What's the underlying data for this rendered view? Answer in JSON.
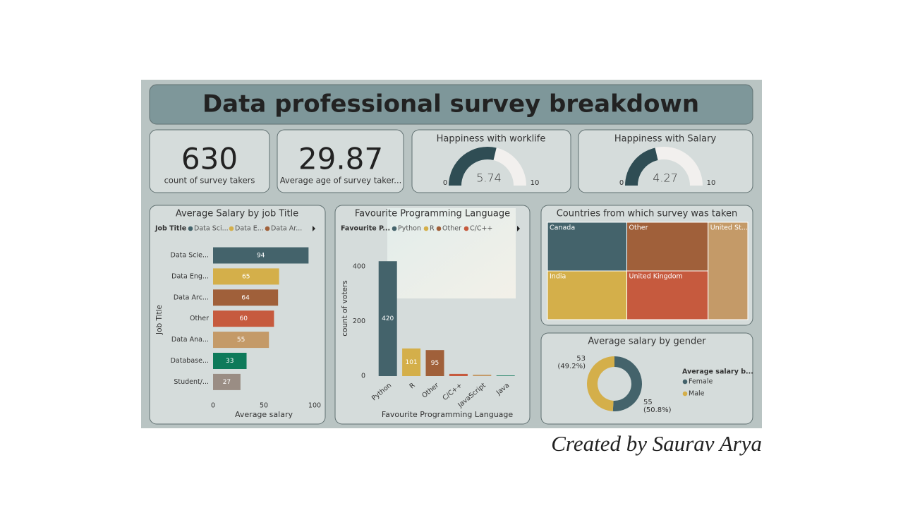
{
  "title": "Data professional survey breakdown",
  "cards": [
    {
      "value": 630,
      "label": "count of survey takers"
    },
    {
      "value": 29.87,
      "label": "Average age of survey taker..."
    }
  ],
  "chart_data": [
    {
      "type": "gauge",
      "title": "Happiness with worklife",
      "value": 5.74,
      "ylim": [
        0,
        10
      ],
      "color": "#2f4d54"
    },
    {
      "type": "gauge",
      "title": "Happiness with Salary",
      "value": 4.27,
      "ylim": [
        0,
        10
      ],
      "color": "#2f4d54"
    },
    {
      "type": "hbar",
      "title": "Average Salary by job Title",
      "legend_title": "Job Title",
      "legend": [
        {
          "name": "Data Sci...",
          "color": "#44636b"
        },
        {
          "name": "Data E...",
          "color": "#d4af4a"
        },
        {
          "name": "Data Ar...",
          "color": "#a0603a"
        }
      ],
      "categories": [
        "Data Scie...",
        "Data Eng...",
        "Data Arc...",
        "Other",
        "Data Ana...",
        "Database...",
        "Student/..."
      ],
      "values": [
        94,
        65,
        64,
        60,
        55,
        33,
        27
      ],
      "colors": [
        "#44636b",
        "#d4af4a",
        "#a0603a",
        "#c65a3e",
        "#c49a68",
        "#0e7a5a",
        "#9a8d84"
      ],
      "xlim": [
        0,
        100
      ],
      "xticks": [
        0,
        50,
        100
      ],
      "x_label": "Average salary",
      "y_label": "Job Title"
    },
    {
      "type": "column",
      "title": "Favourite Programming Language",
      "legend_title": "Favourite P...",
      "legend": [
        {
          "name": "Python",
          "color": "#44636b"
        },
        {
          "name": "R",
          "color": "#d4af4a"
        },
        {
          "name": "Other",
          "color": "#a0603a"
        },
        {
          "name": "C/C++",
          "color": "#c65a3e"
        }
      ],
      "categories": [
        "Python",
        "R",
        "Other",
        "C/C++",
        "JavaScript",
        "Java"
      ],
      "values": [
        420,
        101,
        95,
        8,
        5,
        2
      ],
      "value_labels": [
        "420",
        "101",
        "95",
        null,
        null,
        null
      ],
      "colors": [
        "#44636b",
        "#d4af4a",
        "#a0603a",
        "#c65a3e",
        "#c49a68",
        "#0e7a5a"
      ],
      "ylim": [
        0,
        450
      ],
      "yticks": [
        0,
        200,
        400
      ],
      "x_label": "Favourite Programming Language",
      "y_label": "count of voters"
    },
    {
      "type": "treemap",
      "title": "Countries from which survey was taken",
      "categories": [
        "Canada",
        "Other",
        "United St...",
        "India",
        "United Kingdom"
      ],
      "values": [
        126,
        129,
        126,
        126,
        129
      ],
      "colors": [
        "#44636b",
        "#a0603a",
        "#c49a68",
        "#d4af4a",
        "#c65a3e"
      ]
    },
    {
      "type": "donut",
      "title": "Average salary by gender",
      "legend_title": "Average salary b...",
      "categories": [
        "Female",
        "Male"
      ],
      "values": [
        55,
        53
      ],
      "colors": [
        "#44636b",
        "#d4af4a"
      ],
      "percentages": [
        50.8,
        49.2
      ],
      "percentage_labels": [
        "(50.8%)",
        "(49.2%)"
      ]
    }
  ],
  "footer": "Created by Saurav Arya"
}
